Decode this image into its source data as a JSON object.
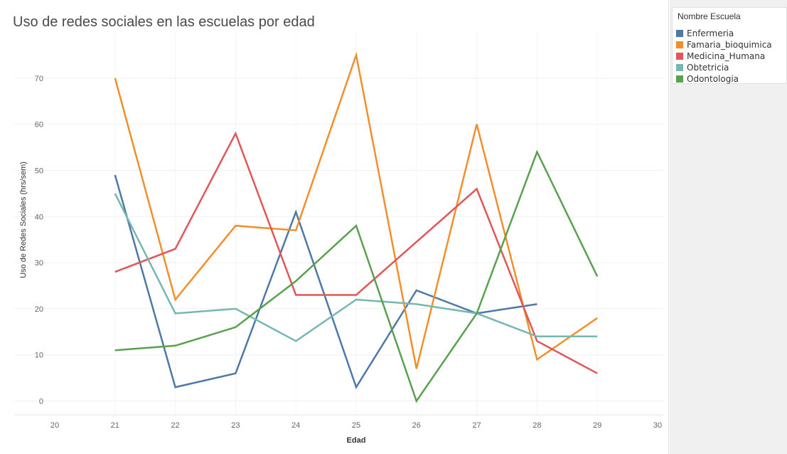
{
  "chart_data": {
    "type": "line",
    "title": "Uso de redes sociales en las escuelas por edad",
    "xlabel": "Edad",
    "ylabel": "Uso de Redes Sociales (hrs/sem)",
    "xlim": [
      20,
      30
    ],
    "ylim": [
      -3,
      80
    ],
    "xticks": [
      20,
      21,
      22,
      23,
      24,
      25,
      26,
      27,
      28,
      29,
      30
    ],
    "yticks": [
      0,
      10,
      20,
      30,
      40,
      50,
      60,
      70
    ],
    "grid": true,
    "legend": {
      "title": "Nombre Escuela",
      "position": "top-right"
    },
    "series": [
      {
        "name": "Enfermeria",
        "color": "#4e79a7",
        "x": [
          21,
          22,
          23,
          24,
          25,
          26,
          27,
          28
        ],
        "y": [
          49,
          3,
          6,
          41,
          3,
          24,
          19,
          21
        ]
      },
      {
        "name": "Famaria_bioquimica",
        "color": "#f28e2b",
        "x": [
          21,
          22,
          23,
          24,
          25,
          26,
          27,
          28,
          29
        ],
        "y": [
          70,
          22,
          38,
          37,
          75,
          7,
          60,
          9,
          18
        ]
      },
      {
        "name": "Medicina_Humana",
        "color": "#e15759",
        "x": [
          21,
          22,
          23,
          24,
          25,
          27,
          28,
          29
        ],
        "y": [
          28,
          33,
          58,
          23,
          23,
          46,
          13,
          6
        ]
      },
      {
        "name": "Obtetricia",
        "color": "#76b7b2",
        "x": [
          21,
          22,
          23,
          24,
          25,
          26,
          27,
          28,
          29
        ],
        "y": [
          45,
          19,
          20,
          13,
          22,
          21,
          19,
          14,
          14
        ]
      },
      {
        "name": "Odontologia",
        "color": "#59a14f",
        "x": [
          21,
          22,
          23,
          24,
          25,
          26,
          27,
          28,
          29
        ],
        "y": [
          11,
          12,
          16,
          26,
          38,
          0,
          19,
          54,
          27
        ]
      }
    ]
  }
}
